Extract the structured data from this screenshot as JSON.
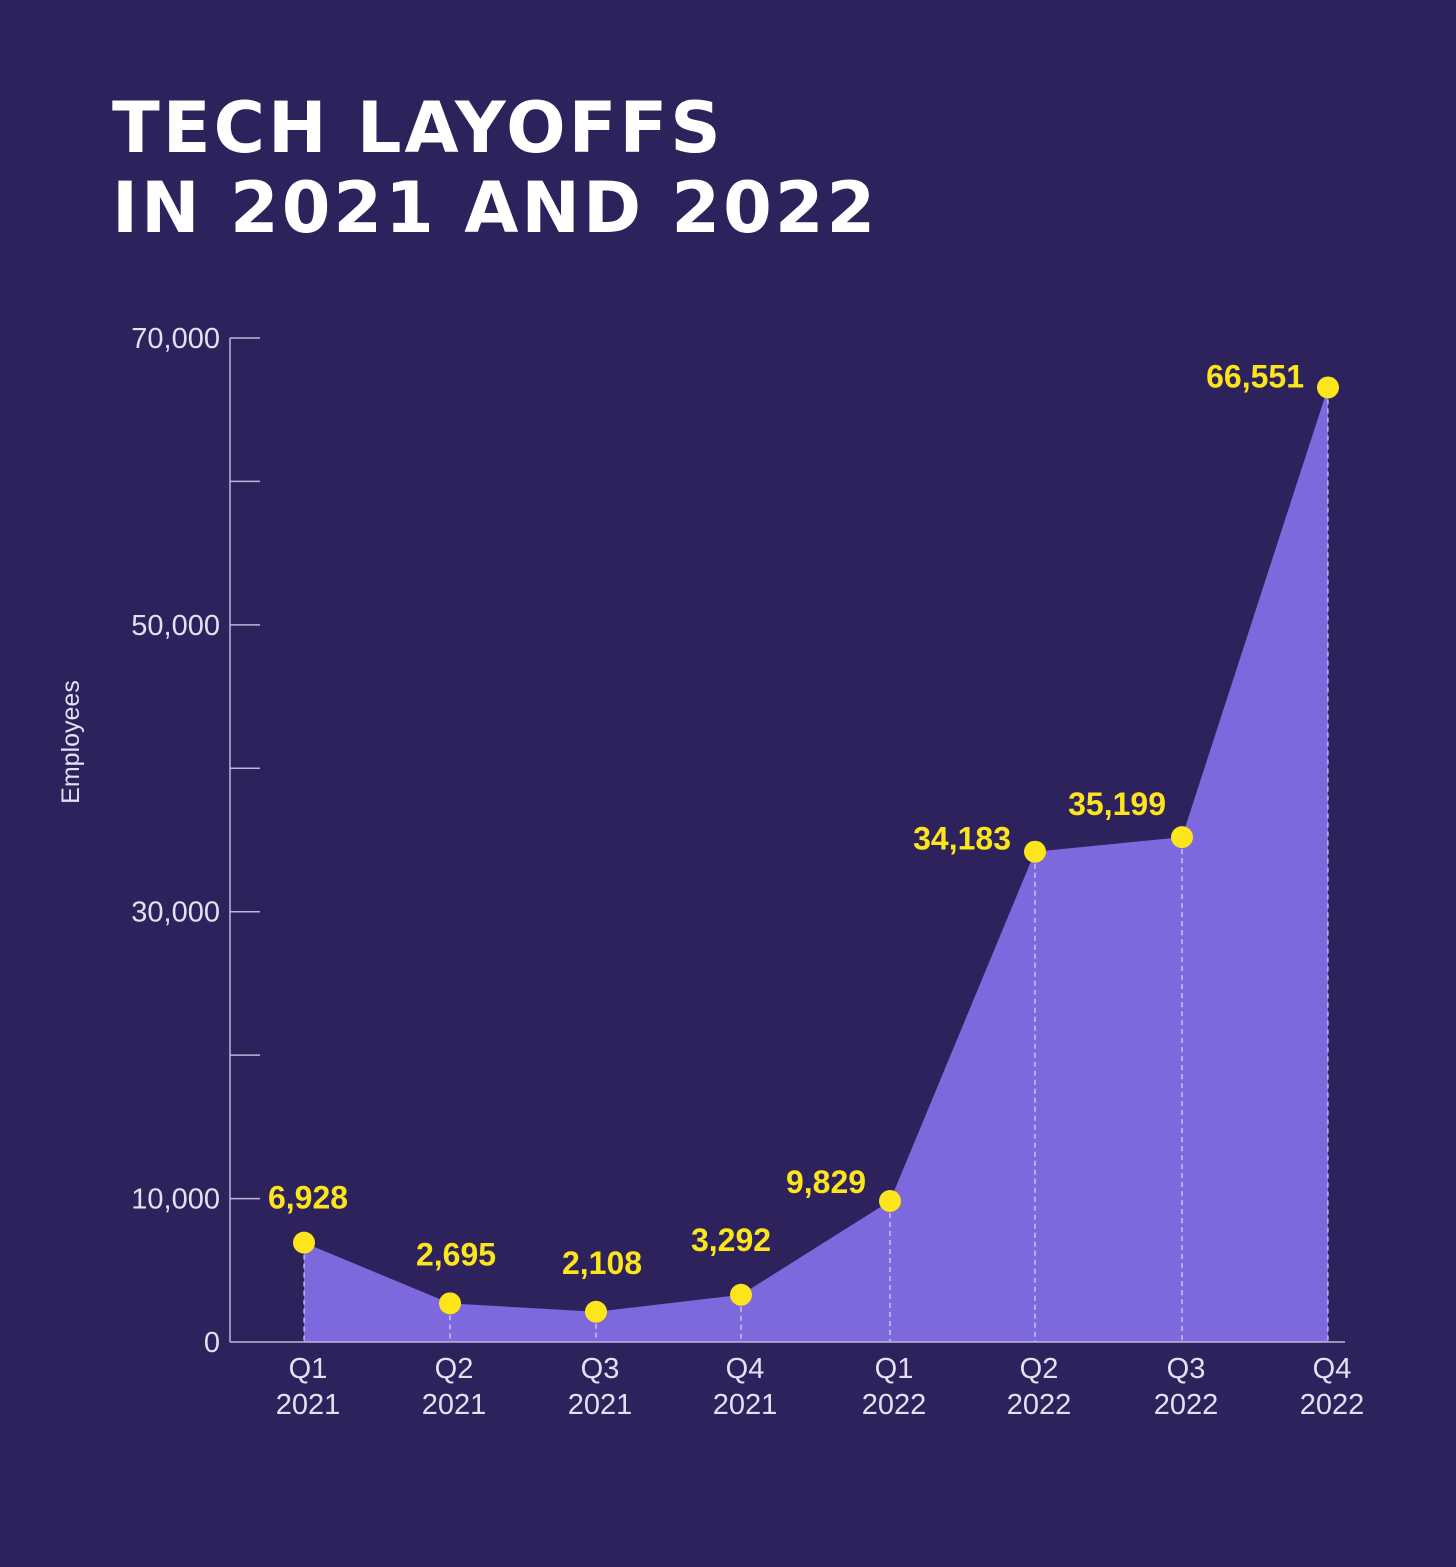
{
  "title": {
    "line1": "TECH LAYOFFS",
    "line2": "IN 2021 AND 2022"
  },
  "colors": {
    "background": "#2e225c",
    "area": "#7e68dd",
    "marker": "#fce51b",
    "axis": "#bdb6d8",
    "text": "#e4e0f2"
  },
  "chart_data": {
    "type": "area",
    "title": "TECH LAYOFFS IN 2021 AND 2022",
    "ylabel": "Employees",
    "xlabel": "",
    "ylim": [
      0,
      70000
    ],
    "yticks": [
      0,
      10000,
      20000,
      30000,
      40000,
      50000,
      60000,
      70000
    ],
    "ytick_labels": [
      "0",
      "10,000",
      "",
      "30,000",
      "",
      "50,000",
      "",
      "70,000"
    ],
    "categories": [
      [
        "Q1",
        "2021"
      ],
      [
        "Q2",
        "2021"
      ],
      [
        "Q3",
        "2021"
      ],
      [
        "Q4",
        "2021"
      ],
      [
        "Q1",
        "2022"
      ],
      [
        "Q2",
        "2022"
      ],
      [
        "Q3",
        "2022"
      ],
      [
        "Q4",
        "2022"
      ]
    ],
    "values": [
      6928,
      2695,
      2108,
      3292,
      9829,
      34183,
      35199,
      66551
    ],
    "value_labels": [
      "6,928",
      "2,695",
      "2,108",
      "3,292",
      "9,829",
      "34,183",
      "35,199",
      "66,551"
    ],
    "grid": false,
    "legend": "none"
  }
}
